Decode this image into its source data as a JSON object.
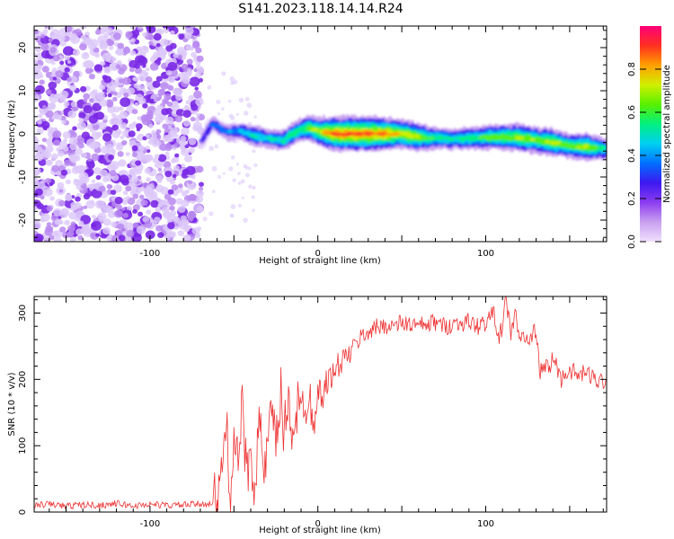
{
  "figure": {
    "title": "S141.2023.118.14.14.R24"
  },
  "chart_data": [
    {
      "type": "heatmap",
      "title": "S141.2023.118.14.14.R24",
      "xlabel": "Height of straight line (km)",
      "ylabel": "Frequency (Hz)",
      "xlim": [
        -169,
        172
      ],
      "ylim": [
        -25,
        25
      ],
      "x_ticks": [
        -100,
        0,
        100
      ],
      "x_tick_labels": [
        "-100",
        "0",
        "100"
      ],
      "y_ticks": [
        -20,
        -10,
        0,
        10,
        20
      ],
      "y_tick_labels": [
        "-20",
        "-10",
        "0",
        "10",
        "20"
      ],
      "noise_region_x": [
        -169,
        -69
      ],
      "ridge": {
        "x": [
          -69,
          -63,
          -55,
          -45,
          -38,
          -30,
          -20,
          -15,
          -10,
          -5,
          0,
          10,
          20,
          30,
          40,
          50,
          60,
          70,
          80,
          90,
          100,
          110,
          120,
          130,
          140,
          150,
          160,
          172
        ],
        "frequency": [
          -1.5,
          2.5,
          0.5,
          0.5,
          -0.5,
          -1,
          -1.5,
          0,
          1,
          1.5,
          0.5,
          0,
          0,
          0,
          0,
          0,
          -0.8,
          -1,
          -1.2,
          -1,
          -0.8,
          -0.8,
          -0.8,
          -1.5,
          -2,
          -2.8,
          -3,
          -3.5
        ],
        "amplitude": [
          0.25,
          0.35,
          0.4,
          0.45,
          0.55,
          0.5,
          0.55,
          0.6,
          0.6,
          0.7,
          0.75,
          0.95,
          0.95,
          0.95,
          0.9,
          0.8,
          0.75,
          0.6,
          0.55,
          0.6,
          0.65,
          0.7,
          0.75,
          0.7,
          0.75,
          0.65,
          0.75,
          0.55
        ]
      },
      "colorbar": {
        "label": "Normalized spectral amplitude",
        "range": [
          0.0,
          1.0
        ],
        "ticks": [
          0.0,
          0.2,
          0.4,
          0.6,
          0.8
        ],
        "tick_labels": [
          "0.0",
          "0.2",
          "0.4",
          "0.6",
          "0.8"
        ],
        "colors": [
          "#f0e0ff",
          "#c9a0f0",
          "#8c3cf0",
          "#3c18f0",
          "#0070ff",
          "#00d0f0",
          "#00f080",
          "#58f000",
          "#d0f000",
          "#ffa000",
          "#ff3020",
          "#ff0078"
        ]
      }
    },
    {
      "type": "line",
      "xlabel": "Height of straight line (km)",
      "ylabel": "SNR (10 * v/v)",
      "xlim": [
        -169,
        172
      ],
      "ylim": [
        0,
        325
      ],
      "x_ticks": [
        -100,
        0,
        100
      ],
      "x_tick_labels": [
        "-100",
        "0",
        "100"
      ],
      "y_ticks": [
        0,
        100,
        200,
        300
      ],
      "y_tick_labels": [
        "0",
        "100",
        "200",
        "300"
      ],
      "series": [
        {
          "color": "#ee3333",
          "x": [
            -169,
            -160,
            -150,
            -140,
            -130,
            -120,
            -110,
            -100,
            -90,
            -80,
            -70,
            -62,
            -58,
            -55,
            -52,
            -50,
            -48,
            -45,
            -42,
            -40,
            -38,
            -35,
            -32,
            -30,
            -28,
            -25,
            -22,
            -20,
            -18,
            -15,
            -12,
            -10,
            -8,
            -5,
            -2,
            0,
            3,
            5,
            8,
            10,
            12,
            15,
            18,
            20,
            22,
            25,
            28,
            30,
            35,
            40,
            45,
            50,
            55,
            60,
            65,
            70,
            75,
            80,
            85,
            90,
            95,
            100,
            105,
            108,
            110,
            112,
            115,
            118,
            120,
            122,
            125,
            128,
            130,
            132,
            135,
            138,
            140,
            145,
            150,
            155,
            160,
            165,
            172
          ],
          "values": [
            10,
            12,
            9,
            11,
            10,
            13,
            9,
            12,
            10,
            11,
            12,
            14,
            30,
            140,
            40,
            120,
            70,
            150,
            50,
            110,
            40,
            130,
            60,
            90,
            150,
            95,
            180,
            110,
            170,
            125,
            160,
            140,
            175,
            165,
            160,
            185,
            175,
            195,
            205,
            210,
            220,
            230,
            235,
            245,
            250,
            262,
            268,
            272,
            278,
            282,
            280,
            285,
            283,
            280,
            282,
            286,
            280,
            283,
            285,
            287,
            280,
            286,
            300,
            262,
            280,
            320,
            270,
            305,
            250,
            270,
            255,
            265,
            280,
            210,
            220,
            215,
            235,
            200,
            215,
            205,
            210,
            200,
            198
          ]
        }
      ]
    }
  ]
}
